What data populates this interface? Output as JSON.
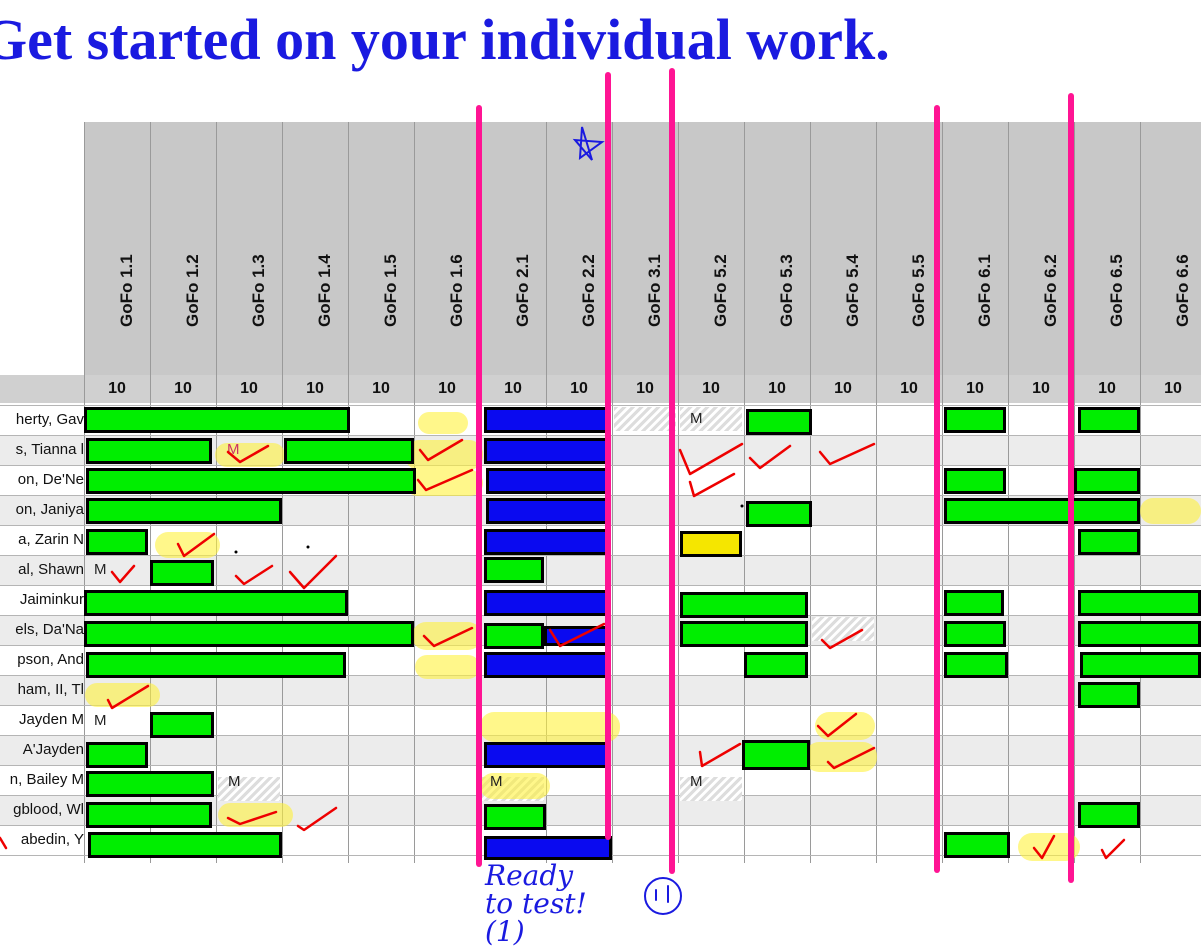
{
  "title": "Get started on your individual work.",
  "columns": [
    "GoFo 1.1",
    "GoFo 1.2",
    "GoFo 1.3",
    "GoFo 1.4",
    "GoFo 1.5",
    "GoFo 1.6",
    "GoFo 2.1",
    "GoFo 2.2",
    "GoFo 3.1",
    "GoFo 5.2",
    "GoFo 5.3",
    "GoFo 5.4",
    "GoFo 5.5",
    "GoFo 6.1",
    "GoFo 6.2",
    "GoFo 6.5",
    "GoFo 6.6"
  ],
  "points": [
    "10",
    "10",
    "10",
    "10",
    "10",
    "10",
    "10",
    "10",
    "10",
    "10",
    "10",
    "10",
    "10",
    "10",
    "10",
    "10",
    "10"
  ],
  "students": [
    "herty, Gav",
    "s, Tianna l",
    "on, De'Ne",
    "on, Janiya",
    "a, Zarin N",
    "al, Shawn",
    "Jaiminkur",
    "els, Da'Na",
    "pson, And",
    "ham, II, Tl",
    "Jayden M",
    "A'Jayden",
    "n, Bailey M",
    "gblood, Wl",
    "abedin, Y"
  ],
  "marks": {
    "missing": "M"
  },
  "annotations": {
    "ready_note": "Ready to test! (1)"
  }
}
